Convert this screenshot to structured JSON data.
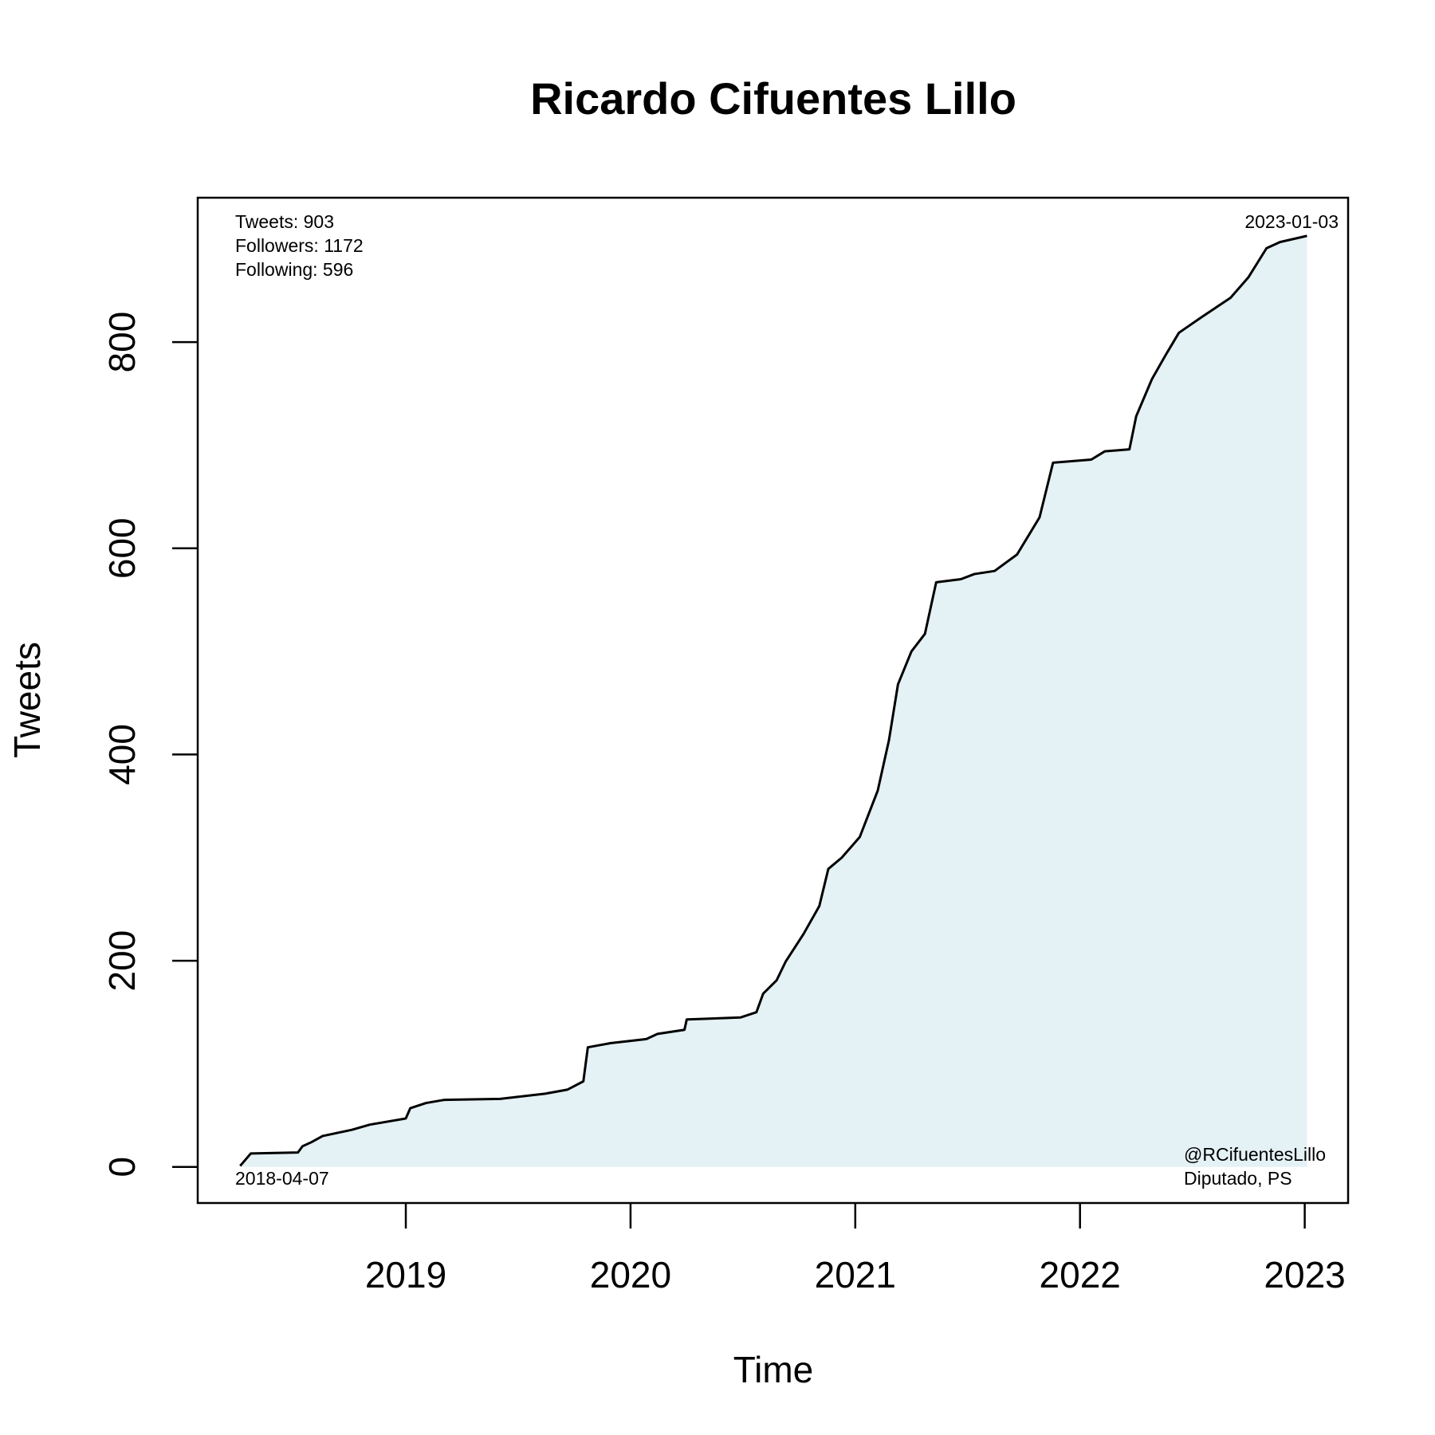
{
  "chart_data": {
    "type": "line",
    "title": "Ricardo Cifuentes Lillo",
    "xlabel": "Time",
    "ylabel": "Tweets",
    "annotations": [
      "Tweets: 903",
      "Followers: 1172",
      "Following: 596",
      "2023-01-03",
      "2018-04-07",
      "@RCifuentesLillo",
      "Diputado, PS"
    ],
    "x": [
      2018.263,
      2018.31,
      2018.52,
      2018.54,
      2018.58,
      2018.63,
      2018.76,
      2018.84,
      2019.0,
      2019.02,
      2019.09,
      2019.17,
      2019.42,
      2019.62,
      2019.72,
      2019.79,
      2019.81,
      2019.91,
      2020.07,
      2020.12,
      2020.24,
      2020.25,
      2020.49,
      2020.56,
      2020.59,
      2020.65,
      2020.69,
      2020.77,
      2020.84,
      2020.88,
      2020.94,
      2021.02,
      2021.1,
      2021.15,
      2021.19,
      2021.25,
      2021.31,
      2021.36,
      2021.47,
      2021.53,
      2021.62,
      2021.72,
      2021.82,
      2021.88,
      2022.05,
      2022.11,
      2022.22,
      2022.25,
      2022.32,
      2022.38,
      2022.44,
      2022.54,
      2022.67,
      2022.75,
      2022.83,
      2022.89,
      2023.01
    ],
    "values": [
      1,
      13,
      14,
      20,
      24,
      30,
      36,
      41,
      47,
      57,
      62,
      65,
      66,
      71,
      75,
      83,
      116,
      120,
      124,
      129,
      133,
      143,
      145,
      150,
      168,
      181,
      199,
      226,
      253,
      289,
      300,
      320,
      365,
      414,
      468,
      500,
      517,
      567,
      570,
      575,
      578,
      594,
      630,
      683,
      686,
      694,
      696,
      728,
      764,
      787,
      809,
      824,
      843,
      863,
      891,
      897,
      903
    ],
    "color": "#000000",
    "fill_color": "#e4f1f5",
    "xlim": [
      2018.074,
      2023.193
    ],
    "xticks": [
      2019,
      2020,
      2021,
      2022,
      2023
    ],
    "ylim": [
      -35,
      940
    ],
    "yticks": [
      0,
      200,
      400,
      600,
      800
    ]
  }
}
